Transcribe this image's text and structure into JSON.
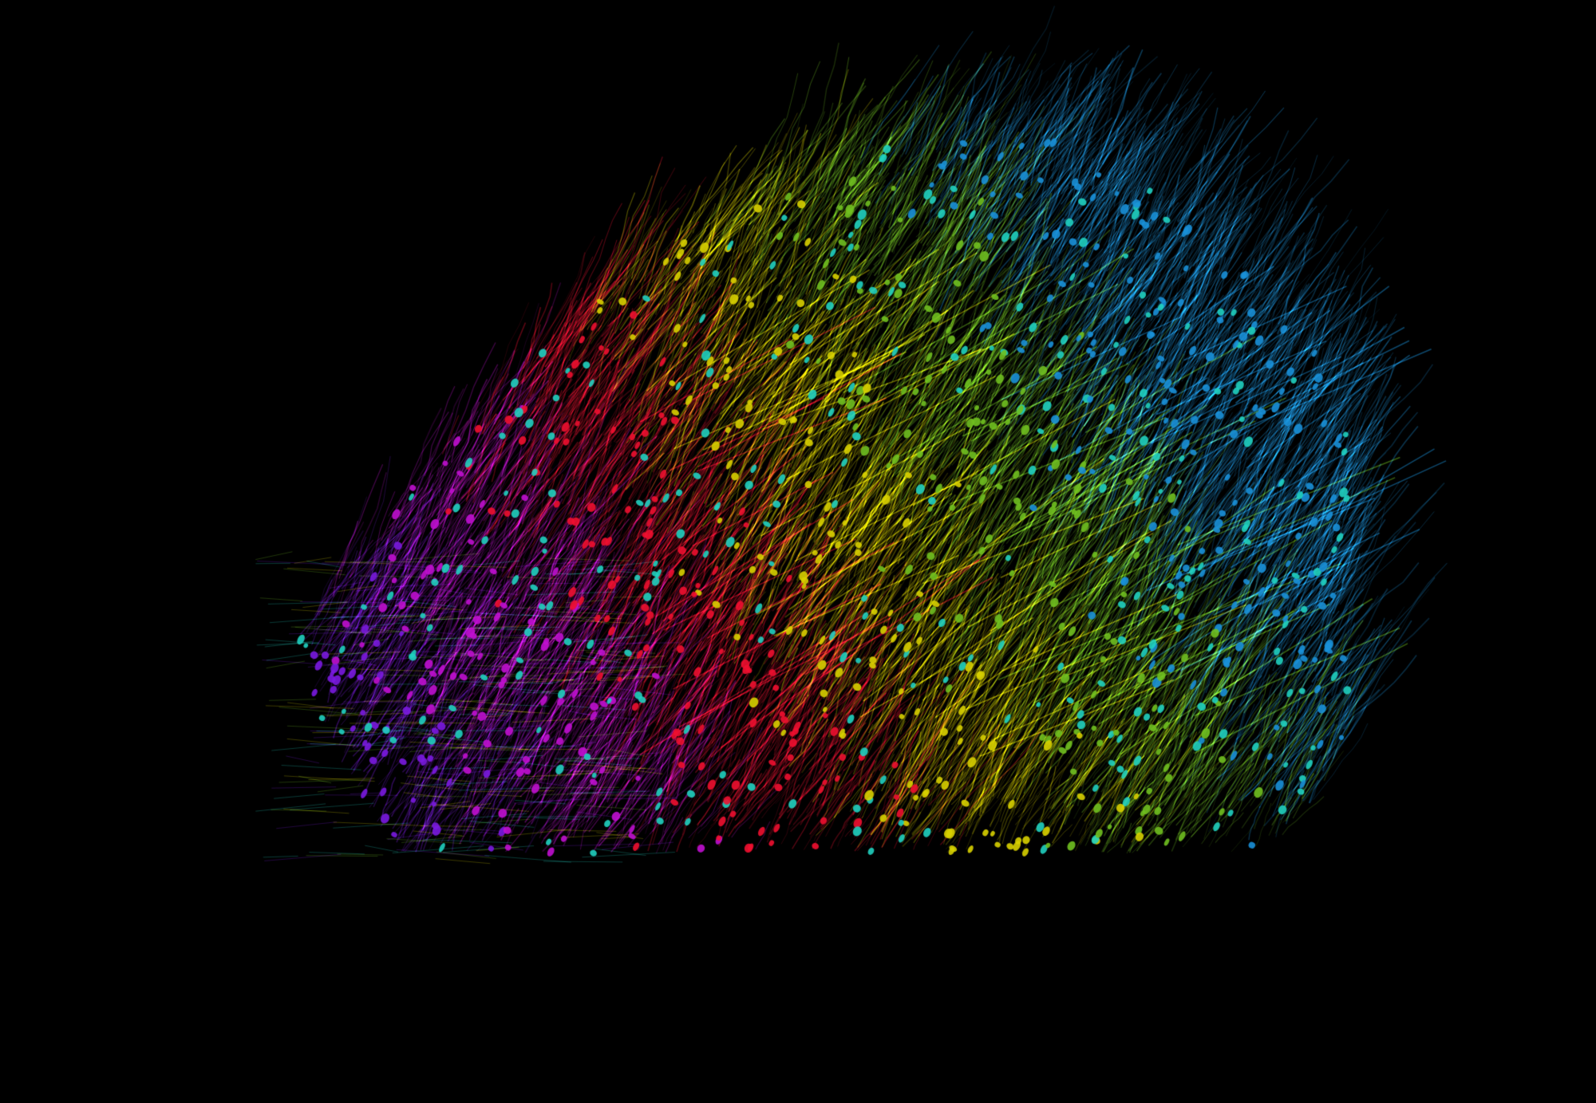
{
  "image": {
    "subject": "neuron-reconstruction",
    "background_color": "#000000",
    "palette": {
      "magenta": "#c010d0",
      "purple": "#7a1ae0",
      "red": "#f01030",
      "yellow": "#d8d000",
      "green": "#70c020",
      "cyan": "#20d0c0",
      "blue": "#1a90d8"
    }
  }
}
